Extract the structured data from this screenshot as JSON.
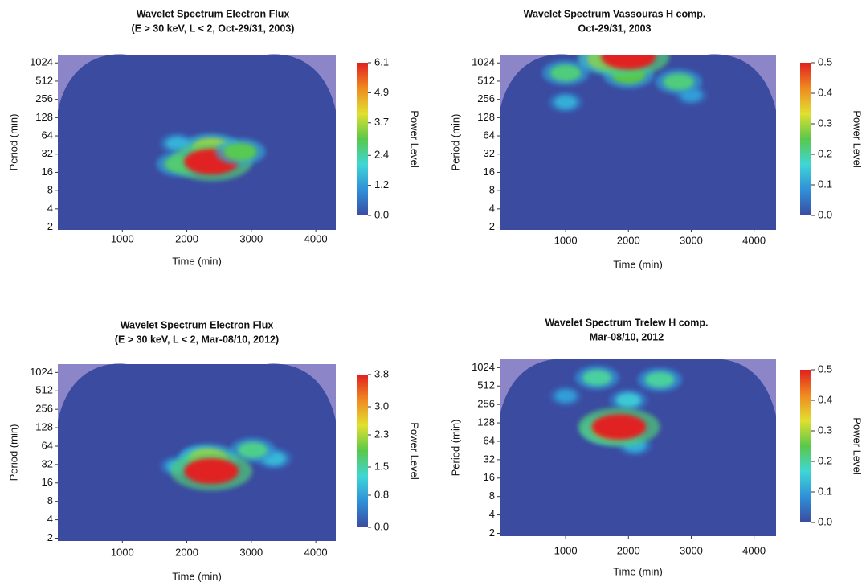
{
  "chart_data": [
    {
      "type": "heatmap",
      "title": "Wavelet Spectrum Electron Flux",
      "subtitle": "(E > 30 keV, L < 2, Oct-29/31, 2003)",
      "xlabel": "Time (min)",
      "ylabel": "Period (min)",
      "colorbar_label": "Power Level",
      "xlim": [
        0,
        4310
      ],
      "xticks": [
        1000,
        2000,
        3000,
        4000
      ],
      "ylim": [
        1.8,
        1400
      ],
      "y_log_base": 2,
      "yticks": [
        2,
        4,
        8,
        16,
        32,
        64,
        128,
        256,
        512,
        1024
      ],
      "clim": [
        0,
        6.1
      ],
      "cticks": [
        {
          "value": 0,
          "label": "0.0"
        },
        1.2,
        2.4,
        3.7,
        4.9,
        6.1
      ],
      "colors": [
        "#3b4ba0",
        "#2f8fd8",
        "#3fd6d6",
        "#59c84a",
        "#e0e030",
        "#f08a20",
        "#e02020"
      ],
      "peaks": [
        {
          "x": 1850,
          "y": 48,
          "value": 1.5
        },
        {
          "x": 1900,
          "y": 22,
          "value": 2.8
        },
        {
          "x": 2380,
          "y": 40,
          "value": 3.7
        },
        {
          "x": 2380,
          "y": 24,
          "value": 6.1
        },
        {
          "x": 2830,
          "y": 35,
          "value": 3.0
        }
      ]
    },
    {
      "type": "heatmap",
      "title": "Wavelet Spectrum Vassouras H comp.",
      "subtitle": "Oct-29/31, 2003",
      "xlabel": "Time (min)",
      "ylabel": "Period (min)",
      "colorbar_label": "Power Level",
      "xlim": [
        -50,
        4350
      ],
      "xticks": [
        1000,
        2000,
        3000,
        4000
      ],
      "ylim": [
        1.8,
        1400
      ],
      "y_log_base": 2,
      "yticks": [
        2,
        4,
        8,
        16,
        32,
        64,
        128,
        256,
        512,
        1024
      ],
      "clim": [
        0,
        0.5
      ],
      "cticks": [
        {
          "value": 0,
          "label": "0.0"
        },
        0.1,
        0.2,
        0.3,
        0.4,
        0.5
      ],
      "colors": [
        "#3b4ba0",
        "#2f8fd8",
        "#3fd6d6",
        "#59c84a",
        "#e0e030",
        "#f08a20",
        "#e02020"
      ],
      "peaks": [
        {
          "x": 1000,
          "y": 230,
          "value": 0.12
        },
        {
          "x": 3000,
          "y": 300,
          "value": 0.1
        },
        {
          "x": 1000,
          "y": 700,
          "value": 0.22
        },
        {
          "x": 2000,
          "y": 650,
          "value": 0.25
        },
        {
          "x": 2800,
          "y": 500,
          "value": 0.22
        },
        {
          "x": 1700,
          "y": 1200,
          "value": 0.35
        },
        {
          "x": 2000,
          "y": 1300,
          "value": 0.5
        }
      ]
    },
    {
      "type": "heatmap",
      "title": "Wavelet Spectrum Electron Flux",
      "subtitle": "(E > 30 keV, L < 2, Mar-08/10, 2012)",
      "xlabel": "Time (min)",
      "ylabel": "Period (min)",
      "colorbar_label": "Power Level",
      "xlim": [
        0,
        4310
      ],
      "xticks": [
        1000,
        2000,
        3000,
        4000
      ],
      "ylim": [
        1.8,
        1400
      ],
      "y_log_base": 2,
      "yticks": [
        2,
        4,
        8,
        16,
        32,
        64,
        128,
        256,
        512,
        1024
      ],
      "clim": [
        0,
        3.8
      ],
      "cticks": [
        {
          "value": 0,
          "label": "0.0"
        },
        0.8,
        1.5,
        2.3,
        {
          "value": 3,
          "label": "3.0"
        },
        3.8
      ],
      "colors": [
        "#3b4ba0",
        "#2f8fd8",
        "#3fd6d6",
        "#59c84a",
        "#e0e030",
        "#f08a20",
        "#e02020"
      ],
      "peaks": [
        {
          "x": 1850,
          "y": 30,
          "value": 0.9
        },
        {
          "x": 2200,
          "y": 40,
          "value": 1.5
        },
        {
          "x": 3350,
          "y": 40,
          "value": 1.0
        },
        {
          "x": 3020,
          "y": 55,
          "value": 1.6
        },
        {
          "x": 2330,
          "y": 40,
          "value": 2.3
        },
        {
          "x": 2380,
          "y": 25,
          "value": 3.8
        }
      ]
    },
    {
      "type": "heatmap",
      "title": "Wavelet Spectrum Trelew H comp.",
      "subtitle": "Mar-08/10, 2012",
      "xlabel": "Time (min)",
      "ylabel": "Period (min)",
      "colorbar_label": "Power Level",
      "xlim": [
        -50,
        4350
      ],
      "xticks": [
        1000,
        2000,
        3000,
        4000
      ],
      "ylim": [
        1.8,
        1400
      ],
      "y_log_base": 2,
      "yticks": [
        2,
        4,
        8,
        16,
        32,
        64,
        128,
        256,
        512,
        1024
      ],
      "clim": [
        0,
        0.5
      ],
      "cticks": [
        {
          "value": 0,
          "label": "0.0"
        },
        0.1,
        0.2,
        0.3,
        0.4,
        0.5
      ],
      "colors": [
        "#3b4ba0",
        "#2f8fd8",
        "#3fd6d6",
        "#59c84a",
        "#e0e030",
        "#f08a20",
        "#e02020"
      ],
      "peaks": [
        {
          "x": 1000,
          "y": 350,
          "value": 0.1
        },
        {
          "x": 2100,
          "y": 55,
          "value": 0.12
        },
        {
          "x": 2000,
          "y": 300,
          "value": 0.15
        },
        {
          "x": 1500,
          "y": 700,
          "value": 0.2
        },
        {
          "x": 2500,
          "y": 650,
          "value": 0.2
        },
        {
          "x": 1750,
          "y": 100,
          "value": 0.35
        },
        {
          "x": 1850,
          "y": 110,
          "value": 0.5
        }
      ]
    }
  ]
}
